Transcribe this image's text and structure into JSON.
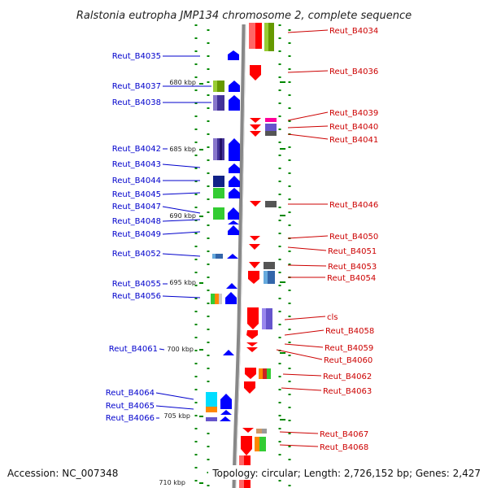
{
  "title": "Ralstonia eutropha JMP134 chromosome 2, complete sequence",
  "footer": {
    "accession": "Accession: NC_007348",
    "topology": "Topology: circular; Length: 2,726,152 bp; Genes: 2,427"
  },
  "colors": {
    "forward_strand": "#0000ff",
    "reverse_strand": "#ff0000",
    "ruler": "#008800",
    "backbone": "#888888",
    "left_label": "#0000cc",
    "right_label": "#cc0000"
  },
  "kbp_marks": [
    {
      "label": "680 kbp"
    },
    {
      "label": "685 kbp"
    },
    {
      "label": "690 kbp"
    },
    {
      "label": "695 kbp"
    },
    {
      "label": "700 kbp"
    },
    {
      "label": "705 kbp"
    },
    {
      "label": "710 kbp"
    }
  ],
  "left_genes": [
    {
      "name": "Reut_B4035"
    },
    {
      "name": "Reut_B4037"
    },
    {
      "name": "Reut_B4038"
    },
    {
      "name": "Reut_B4042"
    },
    {
      "name": "Reut_B4043"
    },
    {
      "name": "Reut_B4044"
    },
    {
      "name": "Reut_B4045"
    },
    {
      "name": "Reut_B4047"
    },
    {
      "name": "Reut_B4048"
    },
    {
      "name": "Reut_B4049"
    },
    {
      "name": "Reut_B4052"
    },
    {
      "name": "Reut_B4055"
    },
    {
      "name": "Reut_B4056"
    },
    {
      "name": "Reut_B4061"
    },
    {
      "name": "Reut_B4064"
    },
    {
      "name": "Reut_B4065"
    },
    {
      "name": "Reut_B4066"
    }
  ],
  "right_genes": [
    {
      "name": "Reut_B4034"
    },
    {
      "name": "Reut_B4036"
    },
    {
      "name": "Reut_B4039"
    },
    {
      "name": "Reut_B4040"
    },
    {
      "name": "Reut_B4041"
    },
    {
      "name": "Reut_B4046"
    },
    {
      "name": "Reut_B4050"
    },
    {
      "name": "Reut_B4051"
    },
    {
      "name": "Reut_B4053"
    },
    {
      "name": "Reut_B4054"
    },
    {
      "name": "cls"
    },
    {
      "name": "Reut_B4058"
    },
    {
      "name": "Reut_B4059"
    },
    {
      "name": "Reut_B4060"
    },
    {
      "name": "Reut_B4062"
    },
    {
      "name": "Reut_B4063"
    },
    {
      "name": "Reut_B4067"
    },
    {
      "name": "Reut_B4068"
    }
  ]
}
